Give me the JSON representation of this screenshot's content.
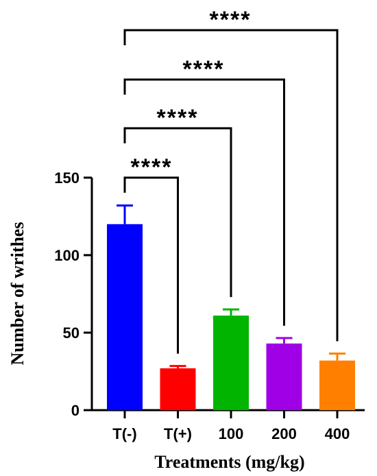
{
  "chart_data": {
    "type": "bar",
    "categories": [
      "T(-)",
      "T(+)",
      "100",
      "200",
      "400"
    ],
    "values": [
      120,
      27,
      61,
      43,
      32
    ],
    "errors": [
      12,
      1.5,
      4,
      3.5,
      4.5
    ],
    "colors": [
      "#0000ff",
      "#ff0000",
      "#00b400",
      "#a000e6",
      "#ff8000"
    ],
    "xlabel": "Treatments (mg/kg)",
    "ylabel": "Number of writhes",
    "ylim": [
      0,
      150
    ],
    "yticks": [
      0,
      50,
      100,
      150
    ],
    "grid": false,
    "comparisons": [
      {
        "from": 0,
        "to": 1,
        "label": "****"
      },
      {
        "from": 0,
        "to": 2,
        "label": "****"
      },
      {
        "from": 0,
        "to": 3,
        "label": "****"
      },
      {
        "from": 0,
        "to": 4,
        "label": "****"
      }
    ]
  }
}
